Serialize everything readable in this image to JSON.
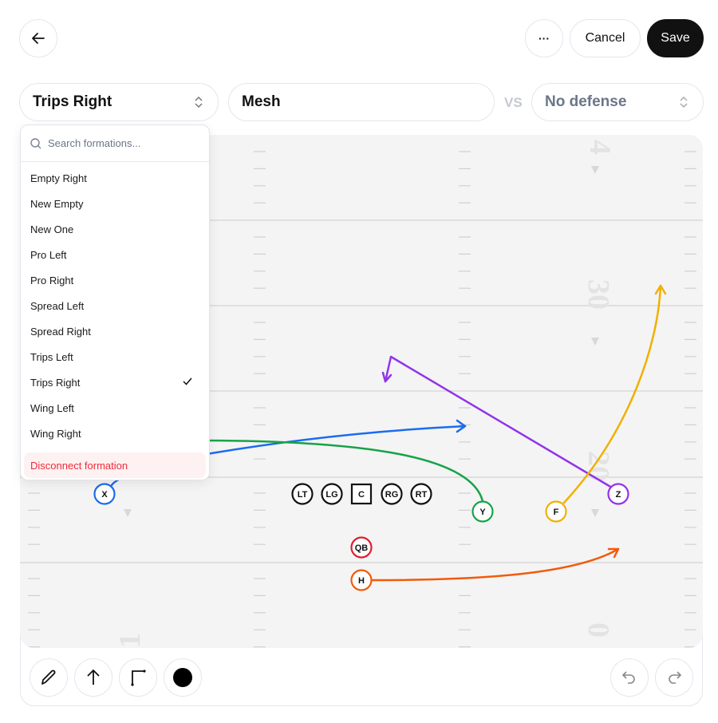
{
  "header": {
    "back_icon": "arrow-left-icon",
    "more_icon": "ellipsis-icon",
    "more_label": "···",
    "cancel_label": "Cancel",
    "save_label": "Save"
  },
  "selectors": {
    "formation": "Trips Right",
    "play": "Mesh",
    "vs_label": "VS",
    "defense": "No defense"
  },
  "dropdown": {
    "search_placeholder": "Search formations...",
    "items": [
      "Empty Right",
      "New Empty",
      "New One",
      "Pro Left",
      "Pro Right",
      "Spread Left",
      "Spread Right",
      "Trips Left",
      "Trips Right",
      "Wing Left",
      "Wing Right"
    ],
    "selected": "Trips Right",
    "disconnect_label": "Disconnect formation"
  },
  "field": {
    "yard_numbers": [
      "4",
      "30",
      "20",
      "0",
      "0",
      "1"
    ],
    "players": [
      {
        "label": "X",
        "color": "#1a6cf0"
      },
      {
        "label": "LT",
        "color": "#111111"
      },
      {
        "label": "LG",
        "color": "#111111"
      },
      {
        "label": "C",
        "color": "#111111"
      },
      {
        "label": "RG",
        "color": "#111111"
      },
      {
        "label": "RT",
        "color": "#111111"
      },
      {
        "label": "Y",
        "color": "#16a34a"
      },
      {
        "label": "F",
        "color": "#f0b000"
      },
      {
        "label": "Z",
        "color": "#9333ea"
      },
      {
        "label": "QB",
        "color": "#e11d2e"
      },
      {
        "label": "H",
        "color": "#f25a0a"
      }
    ]
  },
  "toolbar": {
    "tools": [
      "pencil-icon",
      "arrow-up-icon",
      "route-corner-icon",
      "color-dot-icon"
    ],
    "undo_icon": "undo-icon",
    "redo_icon": "redo-icon"
  }
}
